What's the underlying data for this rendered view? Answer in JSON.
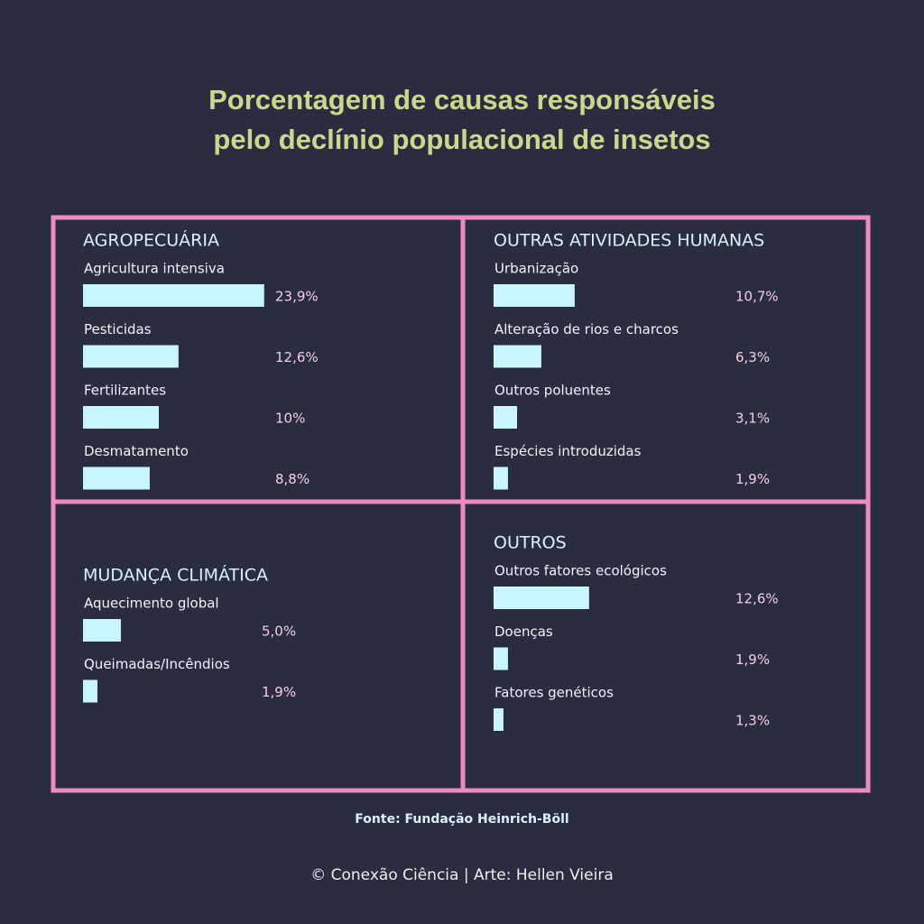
{
  "title": [
    "Porcentagem de causas responsáveis",
    "pelo declínio populacional de insetos"
  ],
  "source": "Fonte: Fundação Heinrich-Böll",
  "credit": "© Conexão Ciência | Arte: Hellen Vieira",
  "chart_data": [
    {
      "type": "bar",
      "orientation": "horizontal",
      "title": "AGROPECUÁRIA",
      "color": "#c9f5fc",
      "categories": [
        "Agricultura intensiva",
        "Pesticidas",
        "Fertilizantes",
        "Desmatamento"
      ],
      "values": [
        23.9,
        12.6,
        10,
        8.8
      ],
      "value_labels": [
        "23,9%",
        "12,6%",
        "10%",
        "8,8%"
      ]
    },
    {
      "type": "bar",
      "orientation": "horizontal",
      "title": "OUTRAS ATIVIDADES HUMANAS",
      "color": "#c9f5fc",
      "categories": [
        "Urbanização",
        "Alteração de rios e charcos",
        "Outros poluentes",
        "Espécies introduzidas"
      ],
      "values": [
        10.7,
        6.3,
        3.1,
        1.9
      ],
      "value_labels": [
        "10,7%",
        "6,3%",
        "3,1%",
        "1,9%"
      ]
    },
    {
      "type": "bar",
      "orientation": "horizontal",
      "title": "MUDANÇA CLIMÁTICA",
      "color": "#c9f5fc",
      "categories": [
        "Aquecimento global",
        "Queimadas/Incêndios"
      ],
      "values": [
        5.0,
        1.9
      ],
      "value_labels": [
        "5,0%",
        "1,9%"
      ]
    },
    {
      "type": "bar",
      "orientation": "horizontal",
      "title": "OUTROS",
      "color": "#c9f5fc",
      "categories": [
        "Outros fatores ecológicos",
        "Doenças",
        "Fatores genéticos"
      ],
      "values": [
        12.6,
        1.9,
        1.3
      ],
      "value_labels": [
        "12,6%",
        "1,9%",
        "1,3%"
      ]
    }
  ]
}
